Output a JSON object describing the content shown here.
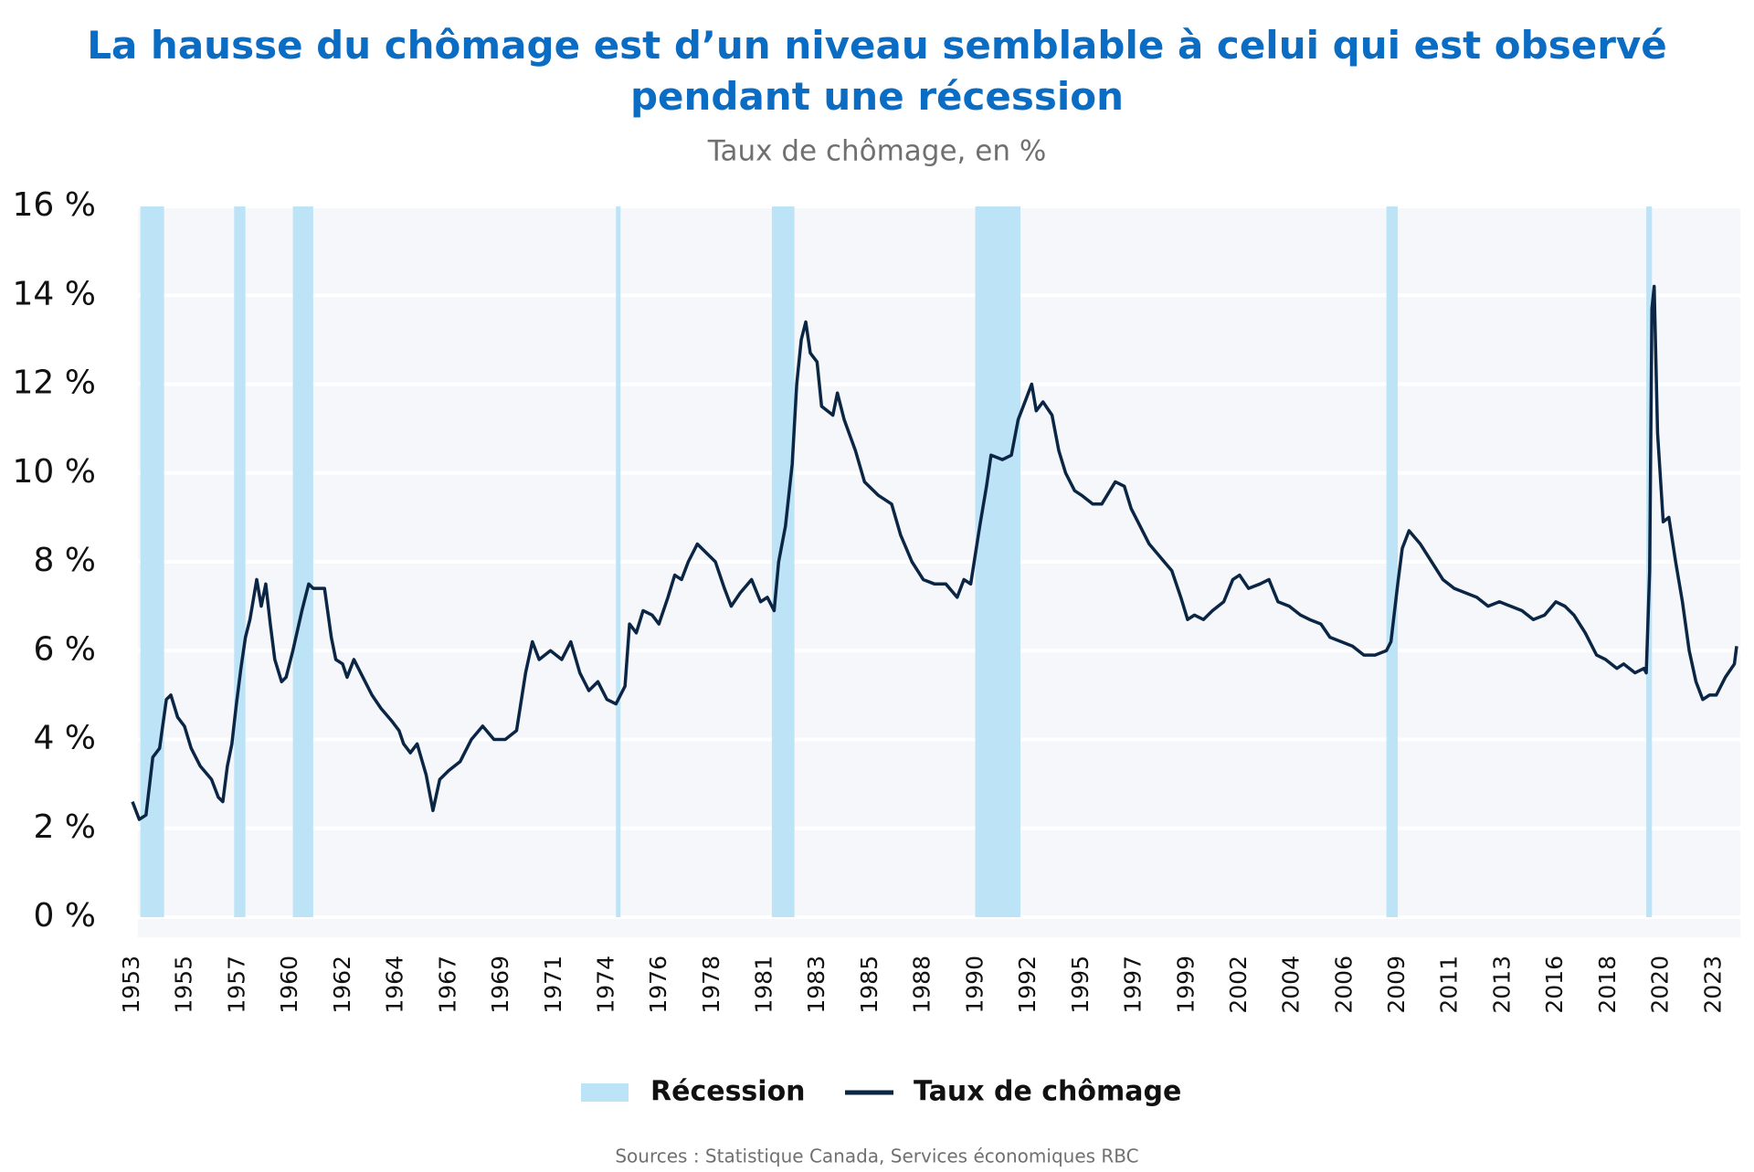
{
  "chart_data": {
    "type": "line",
    "title": "La hausse du chômage est d’un niveau semblable à celui qui est observé pendant une récession",
    "subtitle": "Taux de chômage, en %",
    "source": "Sources : Statistique Canada, Services économiques RBC",
    "x": [
      1953.0,
      1953.3,
      1953.6,
      1953.9,
      1954.2,
      1954.5,
      1954.7,
      1955.0,
      1955.3,
      1955.6,
      1956.0,
      1956.5,
      1956.8,
      1957.0,
      1957.2,
      1957.4,
      1957.6,
      1957.8,
      1958.0,
      1958.2,
      1958.5,
      1958.7,
      1958.9,
      1959.1,
      1959.3,
      1959.6,
      1959.8,
      1960.1,
      1960.5,
      1960.8,
      1961.0,
      1961.5,
      1961.8,
      1962.0,
      1962.3,
      1962.5,
      1962.8,
      1963.2,
      1963.6,
      1964.0,
      1964.5,
      1964.8,
      1965.0,
      1965.3,
      1965.6,
      1966.0,
      1966.3,
      1966.6,
      1967.0,
      1967.5,
      1968.0,
      1968.5,
      1969.0,
      1969.5,
      1970.0,
      1970.4,
      1970.7,
      1971.0,
      1971.5,
      1972.0,
      1972.4,
      1972.8,
      1973.2,
      1973.6,
      1974.0,
      1974.4,
      1974.8,
      1975.0,
      1975.3,
      1975.6,
      1976.0,
      1976.3,
      1976.7,
      1977.0,
      1977.3,
      1977.6,
      1978.0,
      1978.4,
      1978.8,
      1979.2,
      1979.5,
      1979.9,
      1980.4,
      1980.8,
      1981.1,
      1981.4,
      1981.6,
      1981.9,
      1982.2,
      1982.4,
      1982.6,
      1982.8,
      1983.0,
      1983.3,
      1983.5,
      1984.0,
      1984.2,
      1984.5,
      1985.0,
      1985.4,
      1986.0,
      1986.6,
      1987.0,
      1987.5,
      1988.0,
      1988.5,
      1989.0,
      1989.5,
      1989.8,
      1990.1,
      1990.5,
      1990.8,
      1991.0,
      1991.5,
      1991.9,
      1992.2,
      1992.5,
      1992.8,
      1993.0,
      1993.3,
      1993.7,
      1994.0,
      1994.3,
      1994.7,
      1995.0,
      1995.5,
      1995.9,
      1996.5,
      1996.9,
      1997.2,
      1997.6,
      1998.0,
      1998.5,
      1999.0,
      1999.4,
      1999.7,
      2000.0,
      2000.4,
      2000.8,
      2001.3,
      2001.7,
      2002.0,
      2002.4,
      2002.9,
      2003.3,
      2003.7,
      2004.2,
      2004.7,
      2005.1,
      2005.6,
      2006.0,
      2006.5,
      2007.0,
      2007.5,
      2008.0,
      2008.5,
      2008.7,
      2009.0,
      2009.2,
      2009.5,
      2010.0,
      2010.5,
      2011.0,
      2011.5,
      2012.0,
      2012.5,
      2013.0,
      2013.5,
      2014.0,
      2014.5,
      2015.0,
      2015.5,
      2016.0,
      2016.4,
      2016.8,
      2017.3,
      2017.8,
      2018.2,
      2018.7,
      2019.0,
      2019.5,
      2019.9,
      2020.0,
      2020.15,
      2020.25,
      2020.35,
      2020.5,
      2020.75,
      2021.0,
      2021.3,
      2021.6,
      2021.9,
      2022.2,
      2022.5,
      2022.8,
      2023.1,
      2023.5,
      2023.9,
      2024.0
    ],
    "series": [
      {
        "name": "Taux de chômage",
        "color": "#0b2545",
        "values": [
          2.6,
          2.2,
          2.3,
          3.6,
          3.8,
          4.9,
          5.0,
          4.5,
          4.3,
          3.8,
          3.4,
          3.1,
          2.7,
          2.6,
          3.4,
          3.9,
          4.8,
          5.6,
          6.3,
          6.7,
          7.6,
          7.0,
          7.5,
          6.6,
          5.8,
          5.3,
          5.4,
          6.0,
          6.9,
          7.5,
          7.4,
          7.4,
          6.3,
          5.8,
          5.7,
          5.4,
          5.8,
          5.4,
          5.0,
          4.7,
          4.4,
          4.2,
          3.9,
          3.7,
          3.9,
          3.2,
          2.4,
          3.1,
          3.3,
          3.5,
          4.0,
          4.3,
          4.0,
          4.0,
          4.2,
          5.5,
          6.2,
          5.8,
          6.0,
          5.8,
          6.2,
          5.5,
          5.1,
          5.3,
          4.9,
          4.8,
          5.2,
          6.6,
          6.4,
          6.9,
          6.8,
          6.6,
          7.2,
          7.7,
          7.6,
          8.0,
          8.4,
          8.2,
          8.0,
          7.4,
          7.0,
          7.3,
          7.6,
          7.1,
          7.2,
          6.9,
          8.0,
          8.8,
          10.2,
          12.0,
          13.0,
          13.4,
          12.7,
          12.5,
          11.5,
          11.3,
          11.8,
          11.2,
          10.5,
          9.8,
          9.5,
          9.3,
          8.6,
          8.0,
          7.6,
          7.5,
          7.5,
          7.2,
          7.6,
          7.5,
          8.8,
          9.7,
          10.4,
          10.3,
          10.4,
          11.2,
          11.6,
          12.0,
          11.4,
          11.6,
          11.3,
          10.5,
          10.0,
          9.6,
          9.5,
          9.3,
          9.3,
          9.8,
          9.7,
          9.2,
          8.8,
          8.4,
          8.1,
          7.8,
          7.2,
          6.7,
          6.8,
          6.7,
          6.9,
          7.1,
          7.6,
          7.7,
          7.4,
          7.5,
          7.6,
          7.1,
          7.0,
          6.8,
          6.7,
          6.6,
          6.3,
          6.2,
          6.1,
          5.9,
          5.9,
          6.0,
          6.2,
          7.5,
          8.3,
          8.7,
          8.4,
          8.0,
          7.6,
          7.4,
          7.3,
          7.2,
          7.0,
          7.1,
          7.0,
          6.9,
          6.7,
          6.8,
          7.1,
          7.0,
          6.8,
          6.4,
          5.9,
          5.8,
          5.6,
          5.7,
          5.5,
          5.6,
          5.5,
          7.8,
          13.7,
          14.2,
          10.9,
          8.9,
          9.0,
          8.0,
          7.1,
          6.0,
          5.3,
          4.9,
          5.0,
          5.0,
          5.4,
          5.7,
          6.1
        ]
      }
    ],
    "recessions": {
      "name": "Récession",
      "color": "#bde3f6",
      "ranges": [
        [
          1953.35,
          1954.4
        ],
        [
          1957.5,
          1958.0
        ],
        [
          1960.1,
          1961.0
        ],
        [
          1974.4,
          1974.6
        ],
        [
          1981.3,
          1982.3
        ],
        [
          1990.3,
          1992.3
        ],
        [
          2008.5,
          2009.0
        ],
        [
          2020.0,
          2020.25
        ]
      ]
    },
    "xlim": [
      1953.0,
      2024.0
    ],
    "ylim": [
      0,
      16
    ],
    "xticks": [
      {
        "value": 1953.0,
        "label": "1953"
      },
      {
        "value": 1955.33,
        "label": "1955"
      },
      {
        "value": 1957.67,
        "label": "1957"
      },
      {
        "value": 1960.0,
        "label": "1960"
      },
      {
        "value": 1962.33,
        "label": "1962"
      },
      {
        "value": 1964.67,
        "label": "1964"
      },
      {
        "value": 1967.0,
        "label": "1967"
      },
      {
        "value": 1969.33,
        "label": "1969"
      },
      {
        "value": 1971.67,
        "label": "1971"
      },
      {
        "value": 1974.0,
        "label": "1974"
      },
      {
        "value": 1976.33,
        "label": "1976"
      },
      {
        "value": 1978.67,
        "label": "1978"
      },
      {
        "value": 1981.0,
        "label": "1981"
      },
      {
        "value": 1983.33,
        "label": "1983"
      },
      {
        "value": 1985.67,
        "label": "1985"
      },
      {
        "value": 1988.0,
        "label": "1988"
      },
      {
        "value": 1990.33,
        "label": "1990"
      },
      {
        "value": 1992.67,
        "label": "1992"
      },
      {
        "value": 1995.0,
        "label": "1995"
      },
      {
        "value": 1997.33,
        "label": "1997"
      },
      {
        "value": 1999.67,
        "label": "1999"
      },
      {
        "value": 2002.0,
        "label": "2002"
      },
      {
        "value": 2004.33,
        "label": "2004"
      },
      {
        "value": 2006.67,
        "label": "2006"
      },
      {
        "value": 2009.0,
        "label": "2009"
      },
      {
        "value": 2011.33,
        "label": "2011"
      },
      {
        "value": 2013.67,
        "label": "2013"
      },
      {
        "value": 2016.0,
        "label": "2016"
      },
      {
        "value": 2018.33,
        "label": "2018"
      },
      {
        "value": 2020.67,
        "label": "2020"
      },
      {
        "value": 2023.0,
        "label": "2023"
      }
    ],
    "yticks": [
      {
        "value": 0,
        "label": "0 %"
      },
      {
        "value": 2,
        "label": "2 %"
      },
      {
        "value": 4,
        "label": "4 %"
      },
      {
        "value": 6,
        "label": "6 %"
      },
      {
        "value": 8,
        "label": "8 %"
      },
      {
        "value": 10,
        "label": "10 %"
      },
      {
        "value": 12,
        "label": "12 %"
      },
      {
        "value": 14,
        "label": "14 %"
      },
      {
        "value": 16,
        "label": "16 %"
      }
    ],
    "grid": true,
    "legend": "bottom"
  }
}
